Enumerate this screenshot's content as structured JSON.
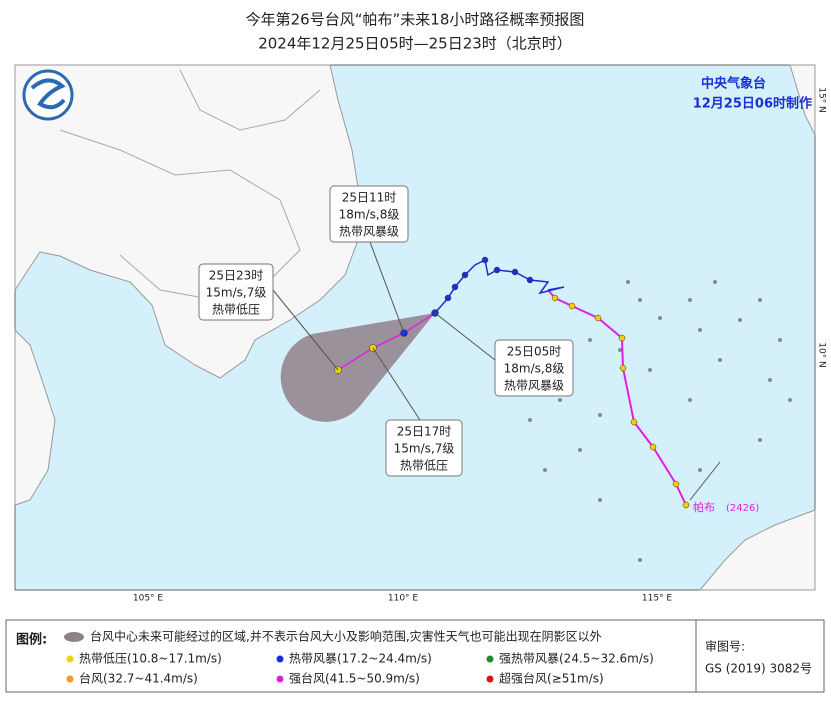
{
  "header": {
    "title": "今年第26号台风“帕布”未来18小时路径概率预报图",
    "subtitle": "2024年12月25日05时—25日23时（北京时）"
  },
  "agency": {
    "name": "中央气象台",
    "issued": "12月25日06时制作"
  },
  "grid_labels": {
    "lat": [
      "15° N",
      "10° N"
    ],
    "lon": [
      "105° E",
      "110° E",
      "115° E"
    ]
  },
  "callouts": [
    {
      "time": "25日11时",
      "wind": "18m/s,8级",
      "level": "热带风暴级"
    },
    {
      "time": "25日23时",
      "wind": "15m/s,7级",
      "level": "热带低压"
    },
    {
      "time": "25日05时",
      "wind": "18m/s,8级",
      "level": "热带风暴级"
    },
    {
      "time": "25日17时",
      "wind": "15m/s,7级",
      "level": "热带低压"
    }
  ],
  "storm_label": "帕布",
  "storm_code": "(2426)",
  "legend": {
    "title": "图例:",
    "cone_note": "台风中心未来可能经过的区域,并不表示台风大小及影响范围,灾害性天气也可能出现在阴影区以外",
    "items": [
      {
        "label": "热带低压(10.8~17.1m/s)",
        "color": "#f5d000"
      },
      {
        "label": "热带风暴(17.2~24.4m/s)",
        "color": "#1a2fd6"
      },
      {
        "label": "强热带风暴(24.5~32.6m/s)",
        "color": "#1f8a2a"
      },
      {
        "label": "台风(32.7~41.4m/s)",
        "color": "#f59a1a"
      },
      {
        "label": "强台风(41.5~50.9m/s)",
        "color": "#e020e0"
      },
      {
        "label": "超强台风(≥51m/s)",
        "color": "#e01010"
      }
    ]
  },
  "approval": {
    "title": "审图号:",
    "number": "GS (2019) 3082号"
  }
}
